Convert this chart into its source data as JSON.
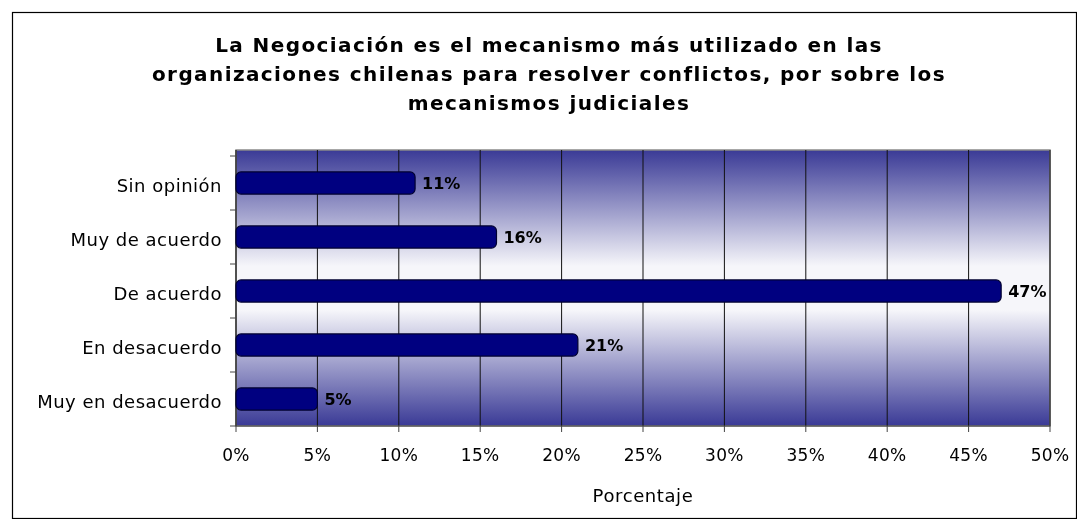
{
  "chart_data": {
    "type": "bar",
    "orientation": "horizontal",
    "title": "La Negociación es el mecanismo más utilizado en las\norganizaciones chilenas para resolver conflictos, por sobre los\nmecanismos judiciales",
    "xlabel": "Porcentaje",
    "categories": [
      "Sin opinión",
      "Muy de acuerdo",
      "De acuerdo",
      "En desacuerdo",
      "Muy en desacuerdo"
    ],
    "values": [
      11,
      16,
      47,
      21,
      5
    ],
    "value_labels": [
      "11%",
      "16%",
      "47%",
      "21%",
      "5%"
    ],
    "color": "#000080",
    "xlim": [
      0,
      50
    ],
    "xticks": [
      {
        "value": 0,
        "label": "0%"
      },
      {
        "value": 5,
        "label": "5%"
      },
      {
        "value": 10,
        "label": "10%"
      },
      {
        "value": 15,
        "label": "15%"
      },
      {
        "value": 20,
        "label": "20%"
      },
      {
        "value": 25,
        "label": "25%"
      },
      {
        "value": 30,
        "label": "30%"
      },
      {
        "value": 35,
        "label": "35%"
      },
      {
        "value": 40,
        "label": "40%"
      },
      {
        "value": 45,
        "label": "45%"
      },
      {
        "value": 50,
        "label": "50%"
      }
    ],
    "grid": "x"
  }
}
